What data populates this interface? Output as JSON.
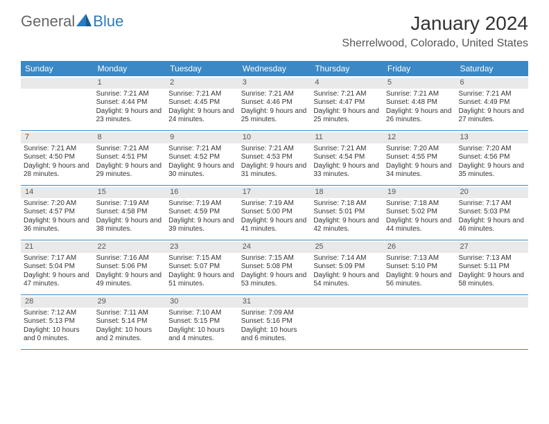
{
  "logo": {
    "text1": "General",
    "text2": "Blue"
  },
  "title": "January 2024",
  "location": "Sherrelwood, Colorado, United States",
  "colors": {
    "header_bg": "#3b88c4",
    "header_text": "#ffffff",
    "daynum_bg": "#e9e9e9",
    "border": "#3b88c4",
    "logo_gray": "#666666",
    "logo_blue": "#2b7bbf"
  },
  "day_headers": [
    "Sunday",
    "Monday",
    "Tuesday",
    "Wednesday",
    "Thursday",
    "Friday",
    "Saturday"
  ],
  "weeks": [
    [
      {
        "n": "",
        "sr": "",
        "ss": "",
        "dl": ""
      },
      {
        "n": "1",
        "sr": "Sunrise: 7:21 AM",
        "ss": "Sunset: 4:44 PM",
        "dl": "Daylight: 9 hours and 23 minutes."
      },
      {
        "n": "2",
        "sr": "Sunrise: 7:21 AM",
        "ss": "Sunset: 4:45 PM",
        "dl": "Daylight: 9 hours and 24 minutes."
      },
      {
        "n": "3",
        "sr": "Sunrise: 7:21 AM",
        "ss": "Sunset: 4:46 PM",
        "dl": "Daylight: 9 hours and 25 minutes."
      },
      {
        "n": "4",
        "sr": "Sunrise: 7:21 AM",
        "ss": "Sunset: 4:47 PM",
        "dl": "Daylight: 9 hours and 25 minutes."
      },
      {
        "n": "5",
        "sr": "Sunrise: 7:21 AM",
        "ss": "Sunset: 4:48 PM",
        "dl": "Daylight: 9 hours and 26 minutes."
      },
      {
        "n": "6",
        "sr": "Sunrise: 7:21 AM",
        "ss": "Sunset: 4:49 PM",
        "dl": "Daylight: 9 hours and 27 minutes."
      }
    ],
    [
      {
        "n": "7",
        "sr": "Sunrise: 7:21 AM",
        "ss": "Sunset: 4:50 PM",
        "dl": "Daylight: 9 hours and 28 minutes."
      },
      {
        "n": "8",
        "sr": "Sunrise: 7:21 AM",
        "ss": "Sunset: 4:51 PM",
        "dl": "Daylight: 9 hours and 29 minutes."
      },
      {
        "n": "9",
        "sr": "Sunrise: 7:21 AM",
        "ss": "Sunset: 4:52 PM",
        "dl": "Daylight: 9 hours and 30 minutes."
      },
      {
        "n": "10",
        "sr": "Sunrise: 7:21 AM",
        "ss": "Sunset: 4:53 PM",
        "dl": "Daylight: 9 hours and 31 minutes."
      },
      {
        "n": "11",
        "sr": "Sunrise: 7:21 AM",
        "ss": "Sunset: 4:54 PM",
        "dl": "Daylight: 9 hours and 33 minutes."
      },
      {
        "n": "12",
        "sr": "Sunrise: 7:20 AM",
        "ss": "Sunset: 4:55 PM",
        "dl": "Daylight: 9 hours and 34 minutes."
      },
      {
        "n": "13",
        "sr": "Sunrise: 7:20 AM",
        "ss": "Sunset: 4:56 PM",
        "dl": "Daylight: 9 hours and 35 minutes."
      }
    ],
    [
      {
        "n": "14",
        "sr": "Sunrise: 7:20 AM",
        "ss": "Sunset: 4:57 PM",
        "dl": "Daylight: 9 hours and 36 minutes."
      },
      {
        "n": "15",
        "sr": "Sunrise: 7:19 AM",
        "ss": "Sunset: 4:58 PM",
        "dl": "Daylight: 9 hours and 38 minutes."
      },
      {
        "n": "16",
        "sr": "Sunrise: 7:19 AM",
        "ss": "Sunset: 4:59 PM",
        "dl": "Daylight: 9 hours and 39 minutes."
      },
      {
        "n": "17",
        "sr": "Sunrise: 7:19 AM",
        "ss": "Sunset: 5:00 PM",
        "dl": "Daylight: 9 hours and 41 minutes."
      },
      {
        "n": "18",
        "sr": "Sunrise: 7:18 AM",
        "ss": "Sunset: 5:01 PM",
        "dl": "Daylight: 9 hours and 42 minutes."
      },
      {
        "n": "19",
        "sr": "Sunrise: 7:18 AM",
        "ss": "Sunset: 5:02 PM",
        "dl": "Daylight: 9 hours and 44 minutes."
      },
      {
        "n": "20",
        "sr": "Sunrise: 7:17 AM",
        "ss": "Sunset: 5:03 PM",
        "dl": "Daylight: 9 hours and 46 minutes."
      }
    ],
    [
      {
        "n": "21",
        "sr": "Sunrise: 7:17 AM",
        "ss": "Sunset: 5:04 PM",
        "dl": "Daylight: 9 hours and 47 minutes."
      },
      {
        "n": "22",
        "sr": "Sunrise: 7:16 AM",
        "ss": "Sunset: 5:06 PM",
        "dl": "Daylight: 9 hours and 49 minutes."
      },
      {
        "n": "23",
        "sr": "Sunrise: 7:15 AM",
        "ss": "Sunset: 5:07 PM",
        "dl": "Daylight: 9 hours and 51 minutes."
      },
      {
        "n": "24",
        "sr": "Sunrise: 7:15 AM",
        "ss": "Sunset: 5:08 PM",
        "dl": "Daylight: 9 hours and 53 minutes."
      },
      {
        "n": "25",
        "sr": "Sunrise: 7:14 AM",
        "ss": "Sunset: 5:09 PM",
        "dl": "Daylight: 9 hours and 54 minutes."
      },
      {
        "n": "26",
        "sr": "Sunrise: 7:13 AM",
        "ss": "Sunset: 5:10 PM",
        "dl": "Daylight: 9 hours and 56 minutes."
      },
      {
        "n": "27",
        "sr": "Sunrise: 7:13 AM",
        "ss": "Sunset: 5:11 PM",
        "dl": "Daylight: 9 hours and 58 minutes."
      }
    ],
    [
      {
        "n": "28",
        "sr": "Sunrise: 7:12 AM",
        "ss": "Sunset: 5:13 PM",
        "dl": "Daylight: 10 hours and 0 minutes."
      },
      {
        "n": "29",
        "sr": "Sunrise: 7:11 AM",
        "ss": "Sunset: 5:14 PM",
        "dl": "Daylight: 10 hours and 2 minutes."
      },
      {
        "n": "30",
        "sr": "Sunrise: 7:10 AM",
        "ss": "Sunset: 5:15 PM",
        "dl": "Daylight: 10 hours and 4 minutes."
      },
      {
        "n": "31",
        "sr": "Sunrise: 7:09 AM",
        "ss": "Sunset: 5:16 PM",
        "dl": "Daylight: 10 hours and 6 minutes."
      },
      {
        "n": "",
        "sr": "",
        "ss": "",
        "dl": ""
      },
      {
        "n": "",
        "sr": "",
        "ss": "",
        "dl": ""
      },
      {
        "n": "",
        "sr": "",
        "ss": "",
        "dl": ""
      }
    ]
  ]
}
